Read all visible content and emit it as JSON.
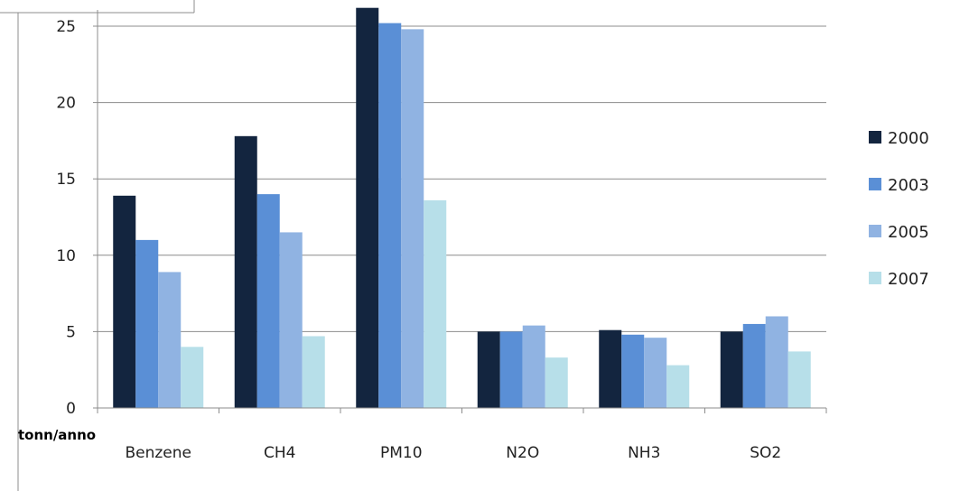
{
  "chart_data": {
    "type": "bar",
    "title": "",
    "xlabel": "",
    "ylabel": "",
    "unit_label": "tonn/anno",
    "categories": [
      "Benzene",
      "CH4",
      "PM10",
      "N2O",
      "NH3",
      "SO2"
    ],
    "series": [
      {
        "name": "2000",
        "color": "#13253f",
        "values": [
          13.9,
          17.8,
          26.2,
          5.0,
          5.1,
          5.0
        ]
      },
      {
        "name": "2003",
        "color": "#5a8fd6",
        "values": [
          11.0,
          14.0,
          25.2,
          5.0,
          4.8,
          5.5
        ]
      },
      {
        "name": "2005",
        "color": "#90b3e2",
        "values": [
          8.9,
          11.5,
          24.8,
          5.4,
          4.6,
          6.0
        ]
      },
      {
        "name": "2007",
        "color": "#b7dfe9",
        "values": [
          4.0,
          4.7,
          13.6,
          3.3,
          2.8,
          3.7
        ]
      }
    ],
    "ylim": [
      0,
      25
    ],
    "yticks": [
      0,
      5,
      10,
      15,
      20,
      25
    ],
    "grid": true,
    "legend_position": "right"
  }
}
